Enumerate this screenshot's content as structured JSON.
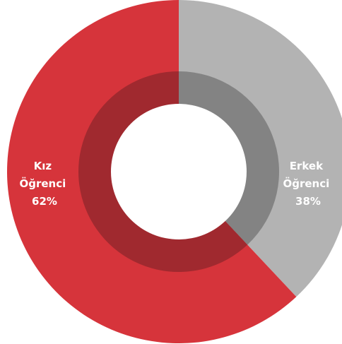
{
  "chart_data": {
    "type": "pie",
    "variant": "donut",
    "title": "",
    "legend": "none",
    "slices": [
      {
        "label_lines": [
          "Kız",
          "Öğrenci",
          "62%"
        ],
        "value": 62,
        "color": "#d6343b",
        "inner_ring_color": "#a0292f"
      },
      {
        "label_lines": [
          "Erkek",
          "Öğrenci",
          "38%"
        ],
        "value": 38,
        "color": "#b3b3b3",
        "inner_ring_color": "#838383"
      }
    ]
  }
}
